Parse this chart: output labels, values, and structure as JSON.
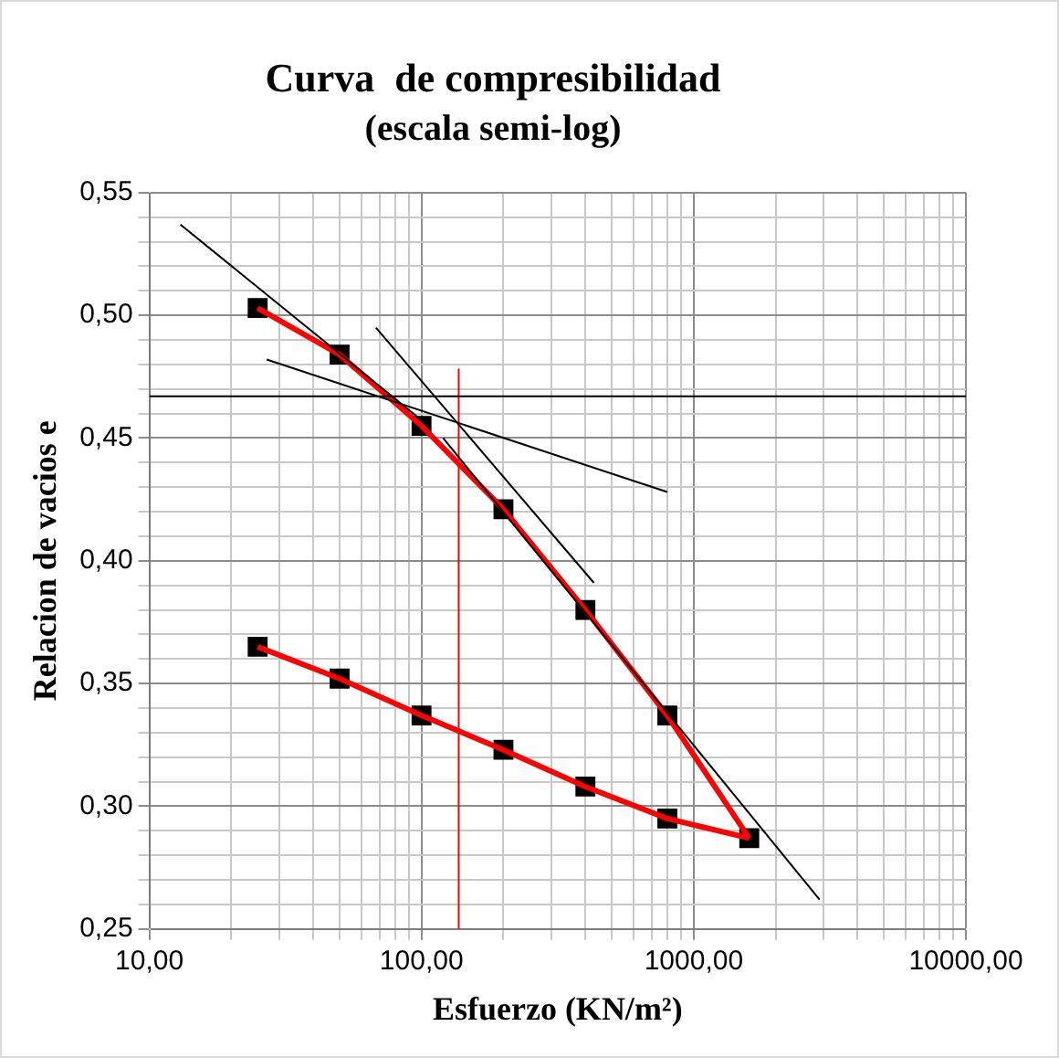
{
  "chart_data": {
    "type": "line",
    "title": "Curva  de compresibilidad",
    "subtitle": "(escala semi-log)",
    "xlabel": "Esfuerzo (KN/m²)",
    "ylabel": "Relacion de vacios e",
    "log": "x",
    "grid": true,
    "legend": false,
    "xlim": [
      10,
      10000
    ],
    "ylim": [
      0.25,
      0.55
    ],
    "xticks": [
      {
        "value": 10,
        "label": "10,00"
      },
      {
        "value": 20,
        "label": null
      },
      {
        "value": 30,
        "label": null
      },
      {
        "value": 40,
        "label": null
      },
      {
        "value": 50,
        "label": null
      },
      {
        "value": 60,
        "label": null
      },
      {
        "value": 70,
        "label": null
      },
      {
        "value": 80,
        "label": null
      },
      {
        "value": 90,
        "label": null
      },
      {
        "value": 100,
        "label": "100,00"
      },
      {
        "value": 200,
        "label": null
      },
      {
        "value": 300,
        "label": null
      },
      {
        "value": 400,
        "label": null
      },
      {
        "value": 500,
        "label": null
      },
      {
        "value": 600,
        "label": null
      },
      {
        "value": 700,
        "label": null
      },
      {
        "value": 800,
        "label": null
      },
      {
        "value": 900,
        "label": null
      },
      {
        "value": 1000,
        "label": "1000,00"
      },
      {
        "value": 2000,
        "label": null
      },
      {
        "value": 3000,
        "label": null
      },
      {
        "value": 4000,
        "label": null
      },
      {
        "value": 5000,
        "label": null
      },
      {
        "value": 6000,
        "label": null
      },
      {
        "value": 7000,
        "label": null
      },
      {
        "value": 8000,
        "label": null
      },
      {
        "value": 9000,
        "label": null
      },
      {
        "value": 10000,
        "label": "10000,00"
      }
    ],
    "yticks": [
      {
        "value": 0.25,
        "label": "0,25"
      },
      {
        "value": 0.26,
        "label": null
      },
      {
        "value": 0.27,
        "label": null
      },
      {
        "value": 0.28,
        "label": null
      },
      {
        "value": 0.29,
        "label": null
      },
      {
        "value": 0.3,
        "label": "0,30"
      },
      {
        "value": 0.31,
        "label": null
      },
      {
        "value": 0.32,
        "label": null
      },
      {
        "value": 0.33,
        "label": null
      },
      {
        "value": 0.34,
        "label": null
      },
      {
        "value": 0.35,
        "label": "0,35"
      },
      {
        "value": 0.36,
        "label": null
      },
      {
        "value": 0.37,
        "label": null
      },
      {
        "value": 0.38,
        "label": null
      },
      {
        "value": 0.39,
        "label": null
      },
      {
        "value": 0.4,
        "label": "0,40"
      },
      {
        "value": 0.41,
        "label": null
      },
      {
        "value": 0.42,
        "label": null
      },
      {
        "value": 0.43,
        "label": null
      },
      {
        "value": 0.44,
        "label": null
      },
      {
        "value": 0.45,
        "label": "0,45"
      },
      {
        "value": 0.46,
        "label": null
      },
      {
        "value": 0.47,
        "label": null
      },
      {
        "value": 0.48,
        "label": null
      },
      {
        "value": 0.49,
        "label": null
      },
      {
        "value": 0.5,
        "label": "0,50"
      },
      {
        "value": 0.51,
        "label": null
      },
      {
        "value": 0.52,
        "label": null
      },
      {
        "value": 0.53,
        "label": null
      },
      {
        "value": 0.54,
        "label": null
      },
      {
        "value": 0.55,
        "label": "0,55"
      }
    ],
    "series": [
      {
        "color": "#000000",
        "marker": "none",
        "line_style": "solid",
        "x": [
          13,
          106
        ],
        "values": [
          0.537,
          0.455
        ]
      },
      {
        "color": "#000000",
        "marker": "none",
        "line_style": "solid",
        "x": [
          27,
          800
        ],
        "values": [
          0.482,
          0.428
        ]
      },
      {
        "color": "#000000",
        "marker": "none",
        "line_style": "solid",
        "x": [
          10,
          10000
        ],
        "values": [
          0.467,
          0.467
        ]
      },
      {
        "color": "#000000",
        "marker": "none",
        "line_style": "solid",
        "x": [
          68,
          430
        ],
        "values": [
          0.495,
          0.391
        ]
      },
      {
        "color": "#000000",
        "marker": "none",
        "line_style": "solid",
        "x": [
          120,
          2900
        ],
        "values": [
          0.45,
          0.262
        ]
      },
      {
        "color": "#ff0000",
        "marker": "none",
        "line_style": "solid",
        "x": [
          137,
          137
        ],
        "values": [
          0.478,
          0.25
        ]
      },
      {
        "color": "#ff0000",
        "marker": "none",
        "line_style": "solid",
        "x": [
          25,
          50,
          100,
          200,
          400,
          800,
          1600
        ],
        "values": [
          0.503,
          0.484,
          0.455,
          0.421,
          0.38,
          0.337,
          0.287
        ]
      },
      {
        "color": "#ff0000",
        "marker": "none",
        "line_style": "solid",
        "x": [
          25,
          50,
          100,
          200,
          400,
          800,
          1600
        ],
        "values": [
          0.365,
          0.352,
          0.337,
          0.323,
          0.308,
          0.295,
          0.287
        ]
      },
      {
        "type": "scatter",
        "color": "#000000",
        "marker": "square",
        "x": [
          25,
          50,
          100,
          200,
          400,
          800,
          1600
        ],
        "values": [
          0.503,
          0.484,
          0.455,
          0.421,
          0.38,
          0.337,
          0.287
        ]
      },
      {
        "type": "scatter",
        "color": "#000000",
        "marker": "square",
        "x": [
          25,
          50,
          100,
          200,
          400,
          800
        ],
        "values": [
          0.365,
          0.352,
          0.337,
          0.323,
          0.308,
          0.295
        ]
      }
    ]
  }
}
